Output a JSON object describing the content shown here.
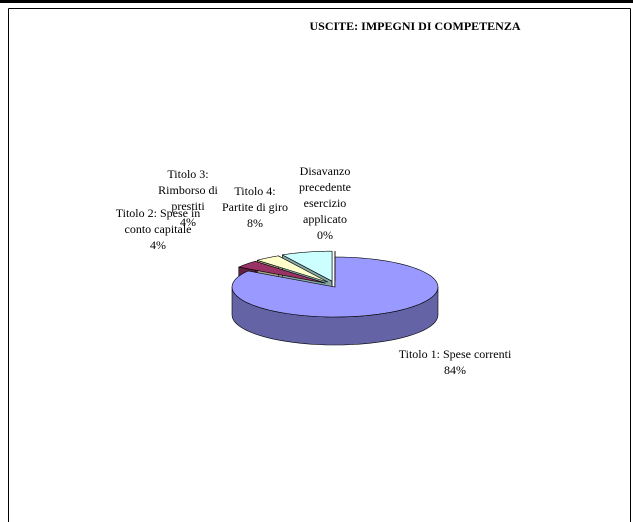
{
  "chart_data": {
    "type": "pie3d",
    "title": "USCITE: IMPEGNI DI COMPETENZA",
    "categories": [
      "Titolo 1: Spese correnti",
      "Titolo 2: Spese in conto capitale",
      "Titolo 3: Rimborso di prestiti",
      "Titolo 4: Partite di giro",
      "Disavanzo precedente esercizio applicato"
    ],
    "values": [
      84,
      4,
      4,
      8,
      0
    ],
    "value_labels": [
      "84%",
      "4%",
      "4%",
      "8%",
      "0%"
    ],
    "colors": [
      "#9999ff",
      "#993366",
      "#ffffcc",
      "#ccffff",
      "#660066"
    ]
  }
}
